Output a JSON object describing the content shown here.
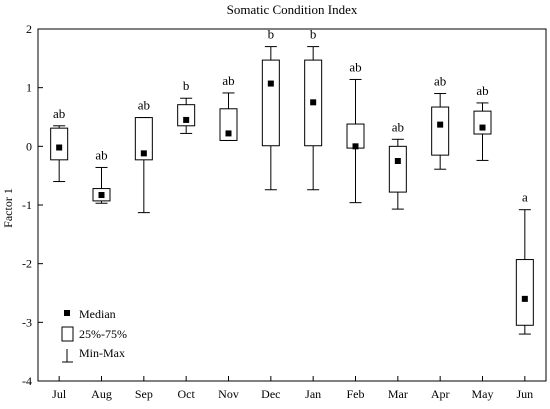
{
  "chart_data": {
    "type": "box",
    "title": "Somatic Condition Index",
    "xlabel": "",
    "ylabel": "Factor 1",
    "ylim": [
      -4,
      2
    ],
    "yticks": [
      "2",
      "1",
      "0",
      "-1",
      "-2",
      "-3",
      "-4"
    ],
    "categories": [
      "Jul",
      "Aug",
      "Sep",
      "Oct",
      "Nov",
      "Dec",
      "Jan",
      "Feb",
      "Mar",
      "Apr",
      "May",
      "Jun"
    ],
    "median": [
      -0.02,
      -0.83,
      -0.12,
      0.45,
      0.22,
      1.07,
      0.75,
      0.0,
      -0.25,
      0.37,
      0.32,
      -2.6
    ],
    "q1": [
      -0.23,
      -0.93,
      -0.23,
      0.35,
      0.1,
      0.01,
      0.01,
      -0.03,
      -0.78,
      -0.15,
      0.21,
      -3.05
    ],
    "q3": [
      0.31,
      -0.72,
      0.49,
      0.71,
      0.64,
      1.47,
      1.47,
      0.38,
      0.0,
      0.67,
      0.6,
      -1.93
    ],
    "min": [
      -0.6,
      -0.97,
      -1.13,
      0.22,
      0.1,
      -0.74,
      -0.74,
      -0.96,
      -1.07,
      -0.39,
      -0.24,
      -3.2
    ],
    "max": [
      0.35,
      -0.36,
      0.49,
      0.82,
      0.91,
      1.7,
      1.7,
      1.14,
      0.12,
      0.9,
      0.74,
      -1.08
    ],
    "group_letters": [
      "ab",
      "ab",
      "ab",
      "b",
      "ab",
      "b",
      "b",
      "ab",
      "ab",
      "ab",
      "ab",
      "a"
    ],
    "legend": {
      "placement": "bottom-left",
      "median": "Median",
      "box": "25%-75%",
      "whisker": "Min-Max"
    },
    "grid": false
  }
}
